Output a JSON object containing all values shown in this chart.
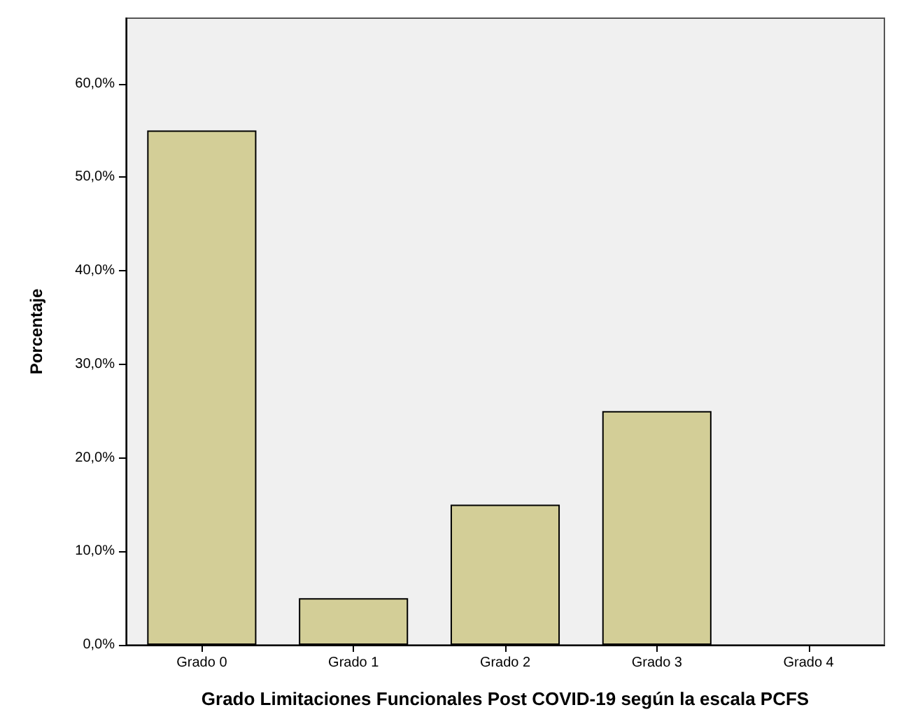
{
  "chart_data": {
    "type": "bar",
    "xlabel": "Grado Limitaciones Funcionales Post COVID-19 según la escala PCFS",
    "ylabel": "Porcentaje",
    "categories": [
      "Grado 0",
      "Grado 1",
      "Grado 2",
      "Grado 3",
      "Grado 4"
    ],
    "values": [
      55,
      5,
      15,
      25,
      0
    ],
    "color": "#d3ce97",
    "ylim": [
      0,
      67
    ],
    "yticks": [
      {
        "value": 0,
        "label": "0,0%"
      },
      {
        "value": 10,
        "label": "10,0%"
      },
      {
        "value": 20,
        "label": "20,0%"
      },
      {
        "value": 30,
        "label": "30,0%"
      },
      {
        "value": 40,
        "label": "40,0%"
      },
      {
        "value": 50,
        "label": "50,0%"
      },
      {
        "value": 60,
        "label": "60,0%"
      }
    ],
    "grid": false
  }
}
